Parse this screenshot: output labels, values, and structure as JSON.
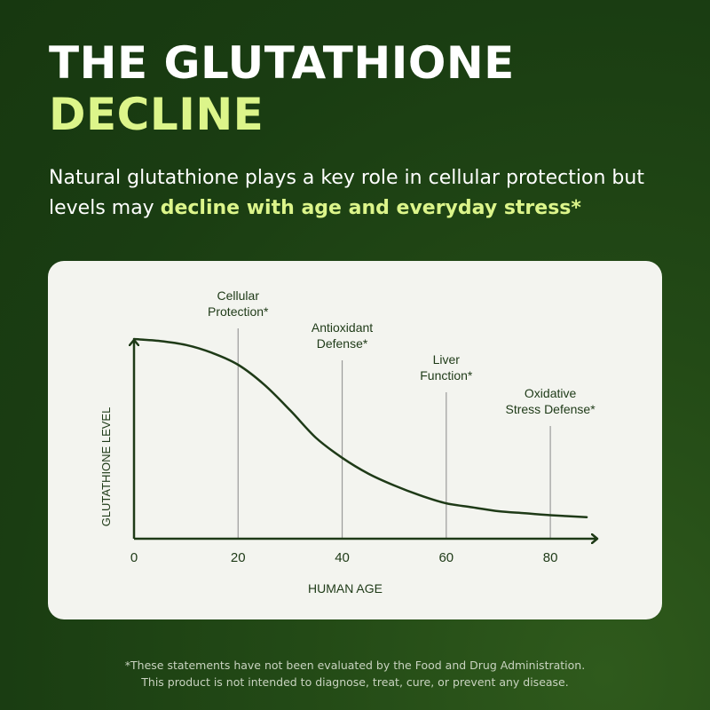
{
  "header": {
    "title_line1": "THE GLUTATHIONE",
    "title_line2": "DECLINE",
    "subtitle_plain": "Natural glutathione plays a key role in cellular protection but levels may ",
    "subtitle_highlight": "decline with age and everyday stress*"
  },
  "colors": {
    "background": "#1d4214",
    "title_white": "#ffffff",
    "accent_lime": "#dcf58a",
    "card": "#f3f4ef",
    "axis_curve": "#1e3a17",
    "marker_lines": "#9a9a9a"
  },
  "chart_data": {
    "type": "line",
    "xlabel": "HUMAN AGE",
    "ylabel": "GLUTATHIONE LEVEL",
    "x_ticks": [
      0,
      20,
      40,
      60,
      80
    ],
    "xlim": [
      0,
      88
    ],
    "ylim": [
      0,
      100
    ],
    "y_tick_labels": false,
    "grid": false,
    "series": [
      {
        "x": [
          0,
          5,
          10,
          15,
          20,
          25,
          30,
          35,
          40,
          45,
          50,
          55,
          60,
          65,
          70,
          75,
          80,
          87
        ],
        "values": [
          100,
          99,
          97,
          93,
          87,
          77,
          64,
          50,
          40,
          32,
          26,
          21,
          17,
          15,
          13,
          12,
          11,
          10
        ]
      }
    ],
    "markers": [
      {
        "x": 20,
        "label_lines": [
          "Cellular",
          "Protection*"
        ]
      },
      {
        "x": 40,
        "label_lines": [
          "Antioxidant",
          "Defense*"
        ]
      },
      {
        "x": 60,
        "label_lines": [
          "Liver",
          "Function*"
        ]
      },
      {
        "x": 80,
        "label_lines": [
          "Oxidative",
          "Stress Defense*"
        ]
      }
    ]
  },
  "footnote": {
    "line1": "*These statements have not been evaluated by the Food and Drug Administration.",
    "line2": "This product is not intended to diagnose, treat, cure, or prevent any disease."
  }
}
